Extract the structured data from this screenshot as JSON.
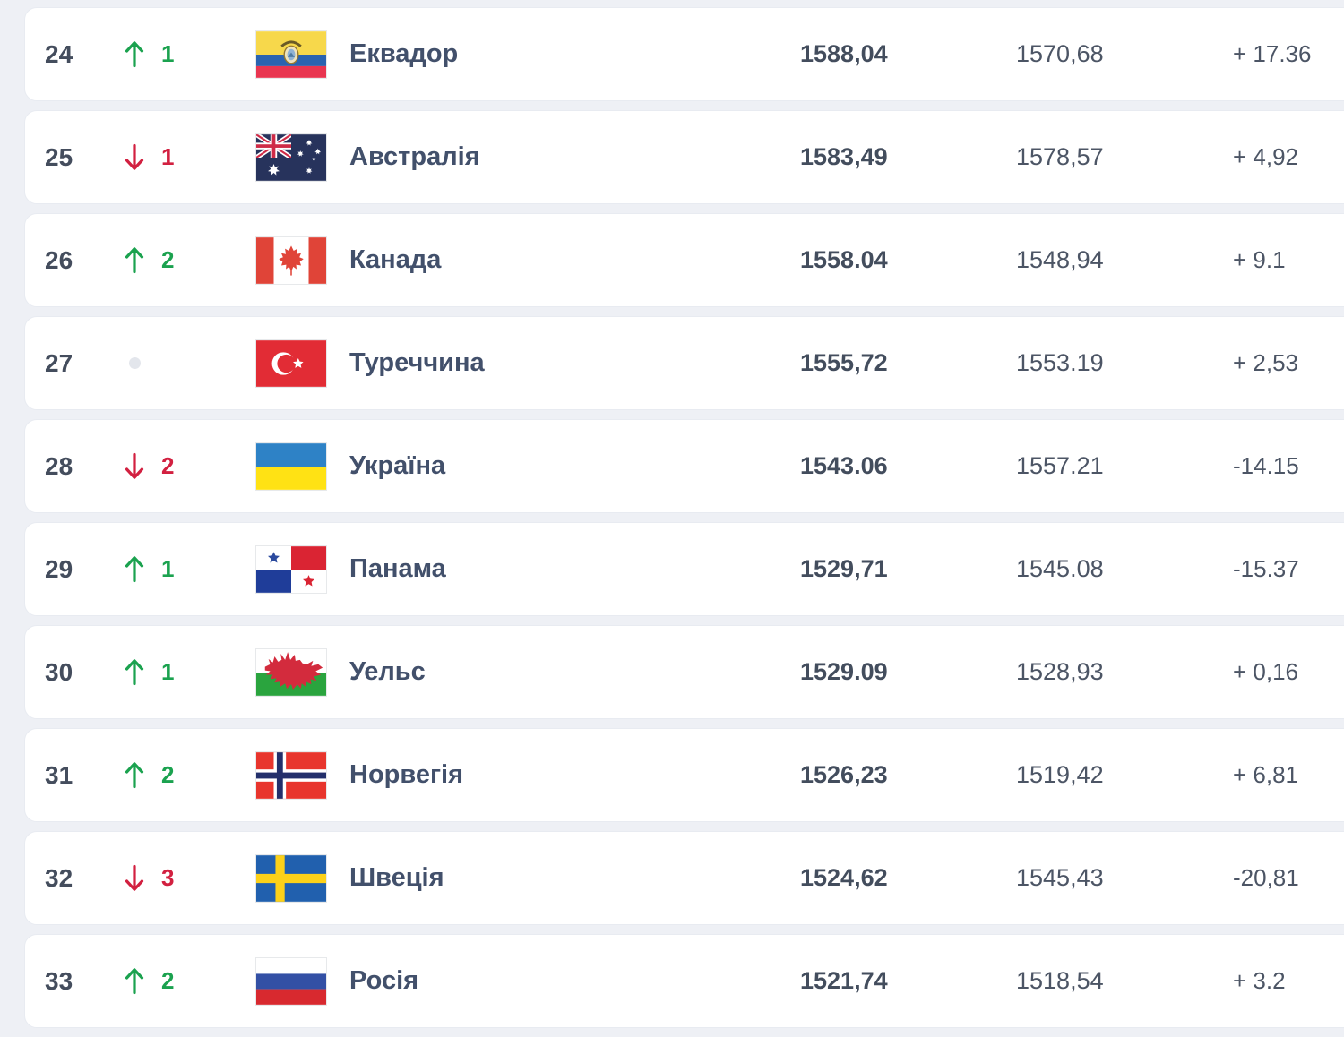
{
  "colors": {
    "up_green": "#1ba24f",
    "down_red": "#d22040",
    "neutral_dot": "#e3e6ec",
    "card_background": "#ffffff",
    "page_background": "#eef0f5"
  },
  "table": {
    "rows": [
      {
        "rank": "24",
        "movement": {
          "direction": "up",
          "value": "1"
        },
        "flag": "ecuador",
        "country": "Еквадор",
        "points": "1588,04",
        "previous_points": "1570,68",
        "change": "+ 17.36"
      },
      {
        "rank": "25",
        "movement": {
          "direction": "down",
          "value": "1"
        },
        "flag": "australia",
        "country": "Австралія",
        "points": "1583,49",
        "previous_points": "1578,57",
        "change": "+ 4,92"
      },
      {
        "rank": "26",
        "movement": {
          "direction": "up",
          "value": "2"
        },
        "flag": "canada",
        "country": "Канада",
        "points": "1558.04",
        "previous_points": "1548,94",
        "change": "+ 9.1"
      },
      {
        "rank": "27",
        "movement": {
          "direction": "none",
          "value": ""
        },
        "flag": "turkey",
        "country": "Туреччина",
        "points": "1555,72",
        "previous_points": "1553.19",
        "change": "+ 2,53"
      },
      {
        "rank": "28",
        "movement": {
          "direction": "down",
          "value": "2"
        },
        "flag": "ukraine",
        "country": "Україна",
        "points": "1543.06",
        "previous_points": "1557.21",
        "change": "-14.15"
      },
      {
        "rank": "29",
        "movement": {
          "direction": "up",
          "value": "1"
        },
        "flag": "panama",
        "country": "Панама",
        "points": "1529,71",
        "previous_points": "1545.08",
        "change": "-15.37"
      },
      {
        "rank": "30",
        "movement": {
          "direction": "up",
          "value": "1"
        },
        "flag": "wales",
        "country": "Уельс",
        "points": "1529.09",
        "previous_points": "1528,93",
        "change": "+ 0,16"
      },
      {
        "rank": "31",
        "movement": {
          "direction": "up",
          "value": "2"
        },
        "flag": "norway",
        "country": "Норвегія",
        "points": "1526,23",
        "previous_points": "1519,42",
        "change": "+ 6,81"
      },
      {
        "rank": "32",
        "movement": {
          "direction": "down",
          "value": "3"
        },
        "flag": "sweden",
        "country": "Швеція",
        "points": "1524,62",
        "previous_points": "1545,43",
        "change": "-20,81"
      },
      {
        "rank": "33",
        "movement": {
          "direction": "up",
          "value": "2"
        },
        "flag": "russia",
        "country": "Росія",
        "points": "1521,74",
        "previous_points": "1518,54",
        "change": "+ 3.2"
      }
    ]
  }
}
